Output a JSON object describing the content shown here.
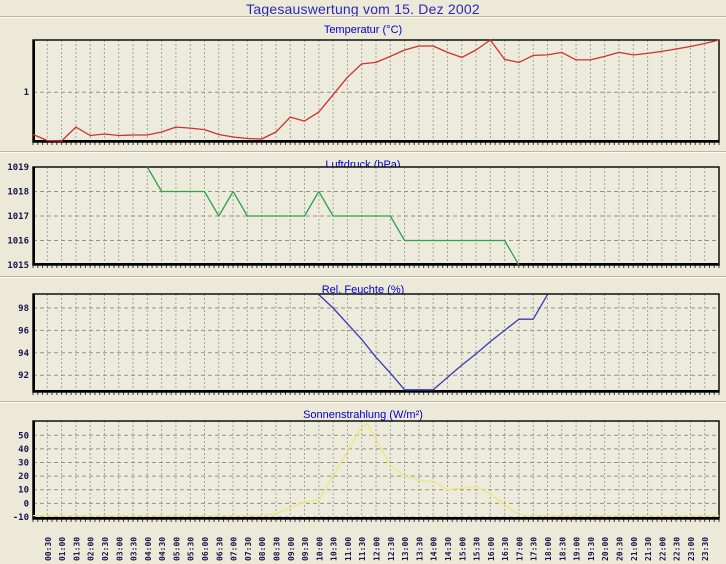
{
  "page": {
    "title": "Tagesauswertung vom 15. Dez 2002"
  },
  "colors": {
    "background": "#ece9d8",
    "plot_background": "#edebdc",
    "main_title": "#2929b8",
    "chart_title": "#0000cd",
    "grid": "#a3a3a3",
    "axis_frame": "#000000",
    "axis_label": "#16164e",
    "temperature_line": "#d03030",
    "pressure_line": "#2fa24e",
    "humidity_line": "#3a3ab8",
    "sun_line": "#e9e97a"
  },
  "x_axis": {
    "min_hour": 0,
    "max_hour": 24,
    "tick_step_hours": 0.5,
    "tick_labels": [
      "00:30",
      "01:00",
      "01:30",
      "02:00",
      "02:30",
      "03:00",
      "03:30",
      "04:00",
      "04:30",
      "05:00",
      "05:30",
      "06:00",
      "06:30",
      "07:00",
      "07:30",
      "08:00",
      "08:30",
      "09:00",
      "09:30",
      "10:00",
      "10:30",
      "11:00",
      "11:30",
      "12:00",
      "12:30",
      "13:00",
      "13:30",
      "14:00",
      "14:30",
      "15:00",
      "15:30",
      "16:00",
      "16:30",
      "17:00",
      "17:30",
      "18:00",
      "18:30",
      "19:00",
      "19:30",
      "20:00",
      "20:30",
      "21:00",
      "21:30",
      "22:00",
      "22:30",
      "23:00",
      "23:30"
    ]
  },
  "chart_data": [
    {
      "type": "line",
      "title": "Temperatur (°C)",
      "color": "#d03030",
      "ylim": [
        0,
        2.05
      ],
      "yticks": [
        1
      ],
      "points": [
        [
          0,
          0.15
        ],
        [
          0.5,
          0.03
        ],
        [
          1,
          0.02
        ],
        [
          1.5,
          0.3
        ],
        [
          2,
          0.13
        ],
        [
          2.5,
          0.16
        ],
        [
          3,
          0.13
        ],
        [
          3.5,
          0.14
        ],
        [
          4,
          0.14
        ],
        [
          4.5,
          0.2
        ],
        [
          5,
          0.3
        ],
        [
          5.5,
          0.28
        ],
        [
          6,
          0.25
        ],
        [
          6.5,
          0.15
        ],
        [
          7,
          0.1
        ],
        [
          7.5,
          0.07
        ],
        [
          8,
          0.06
        ],
        [
          8.5,
          0.2
        ],
        [
          9,
          0.5
        ],
        [
          9.5,
          0.42
        ],
        [
          10,
          0.6
        ],
        [
          10.5,
          0.95
        ],
        [
          11,
          1.3
        ],
        [
          11.5,
          1.57
        ],
        [
          12,
          1.6
        ],
        [
          12.5,
          1.72
        ],
        [
          13,
          1.85
        ],
        [
          13.5,
          1.93
        ],
        [
          14,
          1.93
        ],
        [
          14.5,
          1.8
        ],
        [
          15,
          1.7
        ],
        [
          15.5,
          1.85
        ],
        [
          16,
          2.05
        ],
        [
          16.5,
          1.66
        ],
        [
          17,
          1.6
        ],
        [
          17.5,
          1.74
        ],
        [
          18,
          1.75
        ],
        [
          18.5,
          1.8
        ],
        [
          19,
          1.65
        ],
        [
          19.5,
          1.65
        ],
        [
          20,
          1.72
        ],
        [
          20.5,
          1.8
        ],
        [
          21,
          1.75
        ],
        [
          21.5,
          1.78
        ],
        [
          22,
          1.82
        ],
        [
          22.5,
          1.87
        ],
        [
          23,
          1.92
        ],
        [
          23.5,
          1.98
        ],
        [
          24,
          2.05
        ]
      ]
    },
    {
      "type": "line",
      "title": "Luftdruck (hPa)",
      "color": "#2fa24e",
      "ylim": [
        1015,
        1019
      ],
      "yticks": [
        1015,
        1016,
        1017,
        1018,
        1019
      ],
      "points": [
        [
          4,
          1019
        ],
        [
          4.5,
          1018
        ],
        [
          6,
          1018
        ],
        [
          6.5,
          1017
        ],
        [
          7,
          1018
        ],
        [
          7.5,
          1017
        ],
        [
          9.5,
          1017
        ],
        [
          10,
          1018
        ],
        [
          10.5,
          1017
        ],
        [
          12.5,
          1017
        ],
        [
          13,
          1016
        ],
        [
          16.5,
          1016
        ],
        [
          17,
          1015
        ]
      ]
    },
    {
      "type": "line",
      "title": "Rel. Feuchte (%)",
      "color": "#3a3ab8",
      "ylim": [
        90.5,
        99.25
      ],
      "yticks": [
        92,
        94,
        96,
        98
      ],
      "points": [
        [
          10,
          99.2
        ],
        [
          10.5,
          98
        ],
        [
          11,
          96.6
        ],
        [
          11.5,
          95.2
        ],
        [
          12,
          93.6
        ],
        [
          12.5,
          92.2
        ],
        [
          13,
          90.7
        ],
        [
          14,
          90.7
        ],
        [
          14.5,
          91.8
        ],
        [
          15,
          92.9
        ],
        [
          15.5,
          93.9
        ],
        [
          16,
          95
        ],
        [
          16.5,
          96
        ],
        [
          17,
          97
        ],
        [
          17.5,
          97
        ],
        [
          18,
          99.2
        ]
      ]
    },
    {
      "type": "line",
      "title": "Sonnenstrahlung (W/m²)",
      "color": "#e9e97a",
      "ylim": [
        -11.5,
        60.5
      ],
      "yticks": [
        -10,
        0,
        10,
        20,
        30,
        40,
        50
      ],
      "points": [
        [
          0,
          -9
        ],
        [
          8,
          -9
        ],
        [
          8.5,
          -7.5
        ],
        [
          9,
          -3
        ],
        [
          9.5,
          1
        ],
        [
          10,
          2.5
        ],
        [
          10.5,
          20
        ],
        [
          11,
          38
        ],
        [
          11.5,
          56
        ],
        [
          11.7,
          58.5
        ],
        [
          12,
          47
        ],
        [
          12.5,
          28
        ],
        [
          13,
          20
        ],
        [
          13.5,
          17
        ],
        [
          14,
          16
        ],
        [
          14.5,
          10
        ],
        [
          15,
          11
        ],
        [
          15.5,
          12.5
        ],
        [
          16,
          7
        ],
        [
          16.5,
          -1
        ],
        [
          17,
          -8.5
        ],
        [
          17.5,
          -9
        ],
        [
          24,
          -9
        ]
      ]
    }
  ]
}
